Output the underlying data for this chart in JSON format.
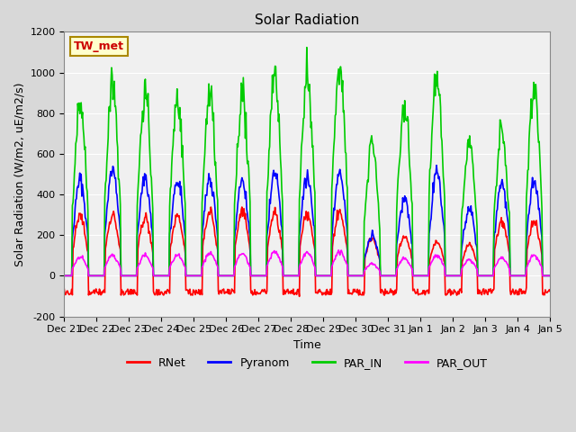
{
  "title": "Solar Radiation",
  "ylabel": "Solar Radiation (W/m2, uE/m2/s)",
  "xlabel": "Time",
  "station_label": "TW_met",
  "ylim": [
    -200,
    1200
  ],
  "yticks": [
    -200,
    0,
    200,
    400,
    600,
    800,
    1000,
    1200
  ],
  "series": [
    "RNet",
    "Pyranom",
    "PAR_IN",
    "PAR_OUT"
  ],
  "colors": [
    "#ff0000",
    "#0000ff",
    "#00cc00",
    "#ff00ff"
  ],
  "line_width": 1.2,
  "background_color": "#e8e8e8",
  "plot_bg_color": "#f0f0f0",
  "x_tick_labels": [
    "Dec 21",
    "Dec 22",
    "Dec 23",
    "Dec 24",
    "Dec 25",
    "Dec 26",
    "Dec 27",
    "Dec 28",
    "Dec 29",
    "Dec 30",
    "Dec 31",
    "Jan 1",
    "Jan 2",
    "Jan 3",
    "Jan 4",
    "Jan 5"
  ],
  "n_days": 15,
  "points_per_day": 48
}
